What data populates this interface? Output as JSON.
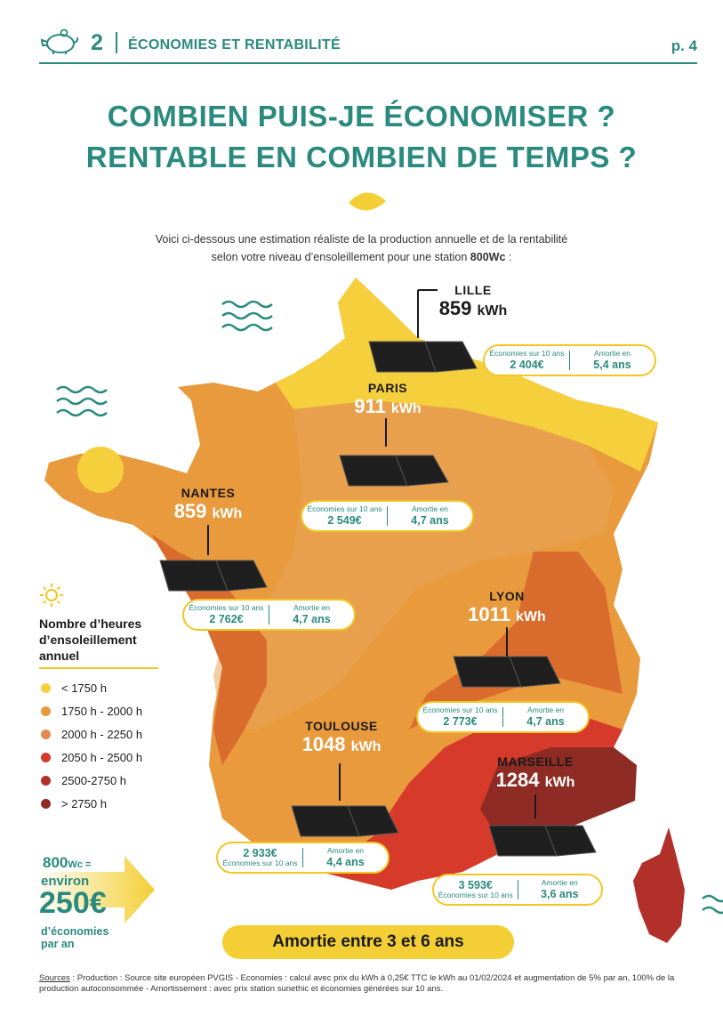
{
  "header": {
    "section_number": "2",
    "section_title": "ÉCONOMIES ET RENTABILITÉ",
    "page": "p. 4"
  },
  "title": {
    "line1": "COMBIEN PUIS-JE ÉCONOMISER ?",
    "line2": "RENTABLE EN COMBIEN DE TEMPS ?"
  },
  "intro": {
    "line1": "Voici ci-dessous une estimation réaliste de la production annuelle et de la rentabilité",
    "line2_prefix": "selon votre niveau d’ensoleillement pour une station ",
    "line2_bold": "800Wc",
    "line2_suffix": " :"
  },
  "cities": [
    {
      "name": "LILLE",
      "kwh": "859",
      "unit": "kWh",
      "savings_label": "Économies sur 10 ans",
      "savings": "2 404€",
      "payback_label": "Amortie en",
      "payback": "5,4 ans"
    },
    {
      "name": "PARIS",
      "kwh": "911",
      "unit": "kWh",
      "savings_label": "Économies sur 10 ans",
      "savings": "2 549€",
      "payback_label": "Amortie en",
      "payback": "4,7 ans"
    },
    {
      "name": "NANTES",
      "kwh": "859",
      "unit": "kWh",
      "savings_label": "Économies sur 10 ans",
      "savings": "2 762€",
      "payback_label": "Amortie en",
      "payback": "4,7 ans"
    },
    {
      "name": "LYON",
      "kwh": "1011",
      "unit": "kWh",
      "savings_label": "Économies sur 10 ans",
      "savings": "2 773€",
      "payback_label": "Amortie en",
      "payback": "4,7 ans"
    },
    {
      "name": "TOULOUSE",
      "kwh": "1048",
      "unit": "kWh",
      "savings_label": "Économies sur 10 ans",
      "savings": "2 933€",
      "payback_label": "Amortie en",
      "payback": "4,4 ans"
    },
    {
      "name": "MARSEILLE",
      "kwh": "1284",
      "unit": "kWh",
      "savings_label": "Économies sur 10 ans",
      "savings": "3 593€",
      "payback_label": "Amortie en",
      "payback": "3,6 ans"
    }
  ],
  "legend": {
    "title_line1": "Nombre d’heures",
    "title_line2": "d’ensoleillement",
    "title_line3": "annuel",
    "items": [
      {
        "label": "< 1750 h",
        "color": "#f5cf3c"
      },
      {
        "label": "1750 h - 2000 h",
        "color": "#e99a3c"
      },
      {
        "label": "2000 h - 2250 h",
        "color": "#e58a4f"
      },
      {
        "label": "2050 h - 2500 h",
        "color": "#d63a2a"
      },
      {
        "label": "2500-2750 h",
        "color": "#b2302a"
      },
      {
        "label": "> 2750 h",
        "color": "#8f2b25"
      }
    ]
  },
  "promo": {
    "power": "800",
    "power_unit": "Wc =",
    "approx": "environ",
    "amount": "250€",
    "line1": "d’économies",
    "line2": "par an"
  },
  "summary": "Amortie entre 3 et 6 ans",
  "sources": {
    "label": "Sources",
    "text": " : Production : Source site européen PVGIS -  Economies : calcul avec prix du kWh à 0,25€ TTC le kWh au 01/02/2024 et augmentation de 5% par an, 100% de la production autoconsommée - Amortissement : avec prix station sunethic et économies générées sur 10 ans."
  }
}
